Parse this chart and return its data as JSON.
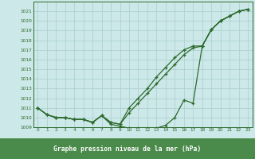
{
  "title": "Graphe pression niveau de la mer (hPa)",
  "xlabel_hours": [
    0,
    1,
    2,
    3,
    4,
    5,
    6,
    7,
    8,
    9,
    10,
    11,
    12,
    13,
    14,
    15,
    16,
    17,
    18,
    19,
    20,
    21,
    22,
    23
  ],
  "series_low": [
    1011.0,
    1010.3,
    1010.0,
    1010.0,
    1009.8,
    1009.8,
    1009.5,
    1010.2,
    1009.3,
    1009.1,
    1008.9,
    1008.9,
    1008.9,
    1008.9,
    1009.2,
    1010.0,
    1011.8,
    1011.5,
    1017.4,
    1019.1,
    1020.0,
    1020.5,
    1021.0,
    1021.2
  ],
  "series_mid": [
    1011.0,
    1010.3,
    1010.0,
    1010.0,
    1009.8,
    1009.8,
    1009.5,
    1010.2,
    1009.5,
    1009.3,
    1010.5,
    1011.5,
    1012.5,
    1013.5,
    1014.5,
    1015.5,
    1016.5,
    1017.2,
    1017.4,
    1019.1,
    1020.0,
    1020.5,
    1021.0,
    1021.2
  ],
  "series_high": [
    1011.0,
    1010.3,
    1010.0,
    1010.0,
    1009.8,
    1009.8,
    1009.5,
    1010.2,
    1009.5,
    1009.3,
    1011.0,
    1012.0,
    1013.0,
    1014.2,
    1015.2,
    1016.2,
    1017.0,
    1017.4,
    1017.4,
    1019.1,
    1020.0,
    1020.5,
    1021.0,
    1021.2
  ],
  "ylim_min": 1009,
  "ylim_max": 1022,
  "yticks": [
    1009,
    1010,
    1011,
    1012,
    1013,
    1014,
    1015,
    1016,
    1017,
    1018,
    1019,
    1020,
    1021
  ],
  "bg_color": "#cce8e8",
  "line_color": "#2d6a2d",
  "grid_color": "#aacece",
  "title_bg": "#4a8a4a",
  "title_text_color": "#ffffff"
}
